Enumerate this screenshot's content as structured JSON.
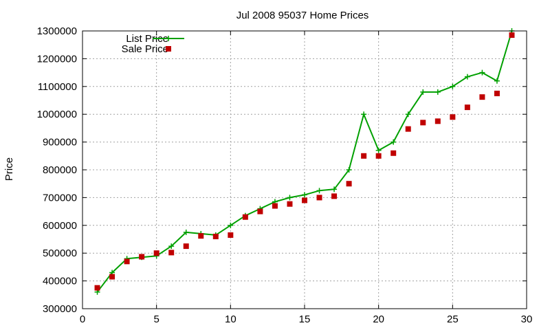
{
  "chart_data": {
    "type": "line",
    "title": "Jul 2008 95037 Home Prices",
    "xlabel": "",
    "ylabel": "Price",
    "xlim": [
      0,
      30
    ],
    "ylim": [
      300000,
      1300000
    ],
    "x_ticks": [
      0,
      5,
      10,
      15,
      20,
      25,
      30
    ],
    "y_ticks": [
      300000,
      400000,
      500000,
      600000,
      700000,
      800000,
      900000,
      1000000,
      1100000,
      1200000,
      1300000
    ],
    "grid": true,
    "legend_position": "top-left",
    "series": [
      {
        "name": "List Price",
        "style": "lines+points",
        "color": "#00a000",
        "x": [
          1,
          2,
          3,
          4,
          5,
          6,
          7,
          8,
          9,
          10,
          11,
          12,
          13,
          14,
          15,
          16,
          17,
          18,
          19,
          20,
          21,
          22,
          23,
          24,
          25,
          26,
          27,
          28,
          29
        ],
        "values": [
          360000,
          430000,
          480000,
          485000,
          490000,
          525000,
          575000,
          570000,
          565000,
          600000,
          635000,
          660000,
          685000,
          700000,
          710000,
          725000,
          730000,
          800000,
          1000000,
          870000,
          900000,
          1000000,
          1080000,
          1080000,
          1100000,
          1135000,
          1150000,
          1120000,
          1300000
        ]
      },
      {
        "name": "Sale Price",
        "style": "points",
        "color": "#c00000",
        "x": [
          1,
          2,
          3,
          4,
          5,
          6,
          7,
          8,
          9,
          10,
          11,
          12,
          13,
          14,
          15,
          16,
          17,
          18,
          19,
          20,
          21,
          22,
          23,
          24,
          25,
          26,
          27,
          28,
          29
        ],
        "values": [
          375000,
          415000,
          470000,
          487000,
          500000,
          502000,
          525000,
          562000,
          560000,
          565000,
          630000,
          650000,
          670000,
          677000,
          690000,
          700000,
          705000,
          750000,
          850000,
          850000,
          860000,
          947000,
          970000,
          975000,
          990000,
          1025000,
          1062000,
          1075000,
          1285000
        ]
      }
    ]
  }
}
